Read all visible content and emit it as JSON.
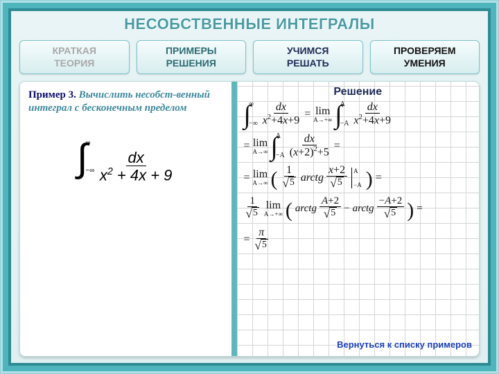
{
  "title": "НЕСОБСТВЕННЫЕ ИНТЕГРАЛЫ",
  "tabs": {
    "brief": "КРАТКАЯ\nТЕОРИЯ",
    "examples": "ПРИМЕРЫ\nРЕШЕНИЯ",
    "learn": "УЧИМСЯ\nРЕШАТЬ",
    "check": "ПРОВЕРЯЕМ\nУМЕНИЯ"
  },
  "problem": {
    "num_label": "Пример 3.",
    "text": "Вычислить несобст-венный интеграл с бесконечным пределом",
    "integral": {
      "upper": "∞",
      "lower": "−∞",
      "num": "dx",
      "den": "x² + 4x + 9"
    }
  },
  "solution": {
    "heading": "Решение",
    "line1": {
      "lhs_int": {
        "ub": "∞",
        "lb": "−∞",
        "num": "dx",
        "den": "x² + 4x + 9"
      },
      "rhs_lim": "A→+∞",
      "rhs_int": {
        "ub": "A",
        "lb": "−A",
        "num": "dx",
        "den": "x² + 4x + 9"
      }
    },
    "line2": {
      "lim": "A→∞",
      "int": {
        "ub": "A",
        "lb": "−A",
        "num": "dx",
        "den": "(x+2)² + 5"
      }
    },
    "line3": {
      "lim": "A→∞",
      "coef_num": "1",
      "coef_rad": "5",
      "arg_num": "x + 2",
      "arg_rad": "5",
      "eval_top": "A",
      "eval_bot": "−A"
    },
    "line4": {
      "coef_num": "1",
      "coef_rad": "5",
      "lim": "A→+∞",
      "t1_num": "A + 2",
      "t1_rad": "5",
      "t2_num": "−A + 2",
      "t2_rad": "5"
    },
    "line5": {
      "num": "π",
      "rad": "5"
    },
    "arctg": "arctg",
    "back": "Вернуться к списку примеров"
  },
  "style": {
    "accent": "#5fb7be",
    "grid": "#d5d5d5",
    "heading_color": "#1d2a55",
    "link_color": "#1a3fb5"
  }
}
